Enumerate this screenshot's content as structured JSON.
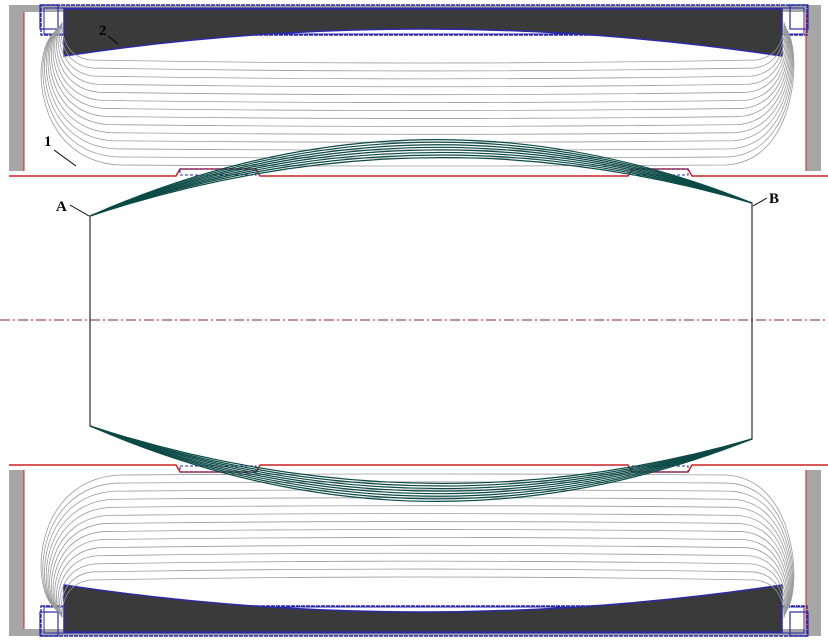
{
  "labels": {
    "one": "1",
    "two": "2",
    "a": "A",
    "b": "B"
  },
  "colors": {
    "frame": "#2a2aa8",
    "steel": "#a6a6a6",
    "coil": "#3a3a3a",
    "field_lines": "#9a9a9a",
    "bore_line": "#cc2222",
    "beam": "#0b4a46",
    "axis": "#8b2030"
  }
}
